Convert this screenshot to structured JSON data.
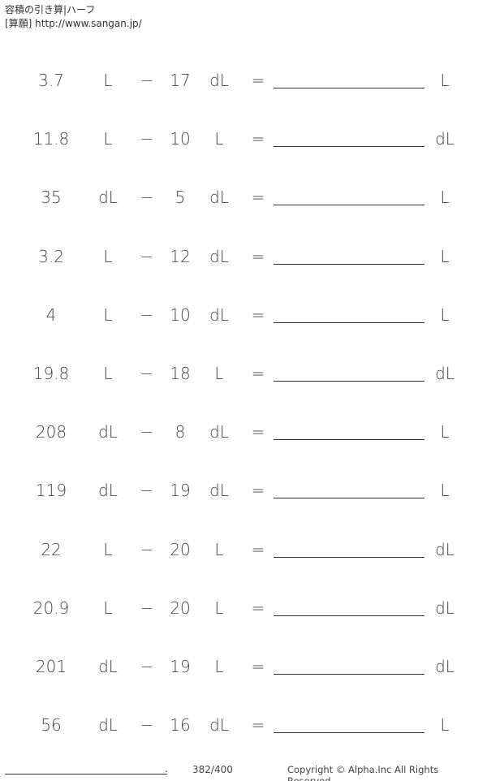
{
  "header": {
    "title": "容積の引き算|ハーフ",
    "site": "[算願] http://www.sangan.jp/"
  },
  "problems": [
    {
      "a": "3.7",
      "ua": "L",
      "op": "−",
      "b": "17",
      "ub": "dL",
      "eq": "=",
      "ans_unit": "L"
    },
    {
      "a": "11.8",
      "ua": "L",
      "op": "−",
      "b": "10",
      "ub": "L",
      "eq": "=",
      "ans_unit": "dL"
    },
    {
      "a": "35",
      "ua": "dL",
      "op": "−",
      "b": "5",
      "ub": "dL",
      "eq": "=",
      "ans_unit": "L"
    },
    {
      "a": "3.2",
      "ua": "L",
      "op": "−",
      "b": "12",
      "ub": "dL",
      "eq": "=",
      "ans_unit": "L"
    },
    {
      "a": "4",
      "ua": "L",
      "op": "−",
      "b": "10",
      "ub": "dL",
      "eq": "=",
      "ans_unit": "L"
    },
    {
      "a": "19.8",
      "ua": "L",
      "op": "−",
      "b": "18",
      "ub": "L",
      "eq": "=",
      "ans_unit": "dL"
    },
    {
      "a": "208",
      "ua": "dL",
      "op": "−",
      "b": "8",
      "ub": "dL",
      "eq": "=",
      "ans_unit": "L"
    },
    {
      "a": "119",
      "ua": "dL",
      "op": "−",
      "b": "19",
      "ub": "dL",
      "eq": "=",
      "ans_unit": "L"
    },
    {
      "a": "22",
      "ua": "L",
      "op": "−",
      "b": "20",
      "ub": "L",
      "eq": "=",
      "ans_unit": "dL"
    },
    {
      "a": "20.9",
      "ua": "L",
      "op": "−",
      "b": "20",
      "ub": "L",
      "eq": "=",
      "ans_unit": "dL"
    },
    {
      "a": "201",
      "ua": "dL",
      "op": "−",
      "b": "19",
      "ub": "L",
      "eq": "=",
      "ans_unit": "dL"
    },
    {
      "a": "56",
      "ua": "dL",
      "op": "−",
      "b": "16",
      "ub": "dL",
      "eq": "=",
      "ans_unit": "L"
    }
  ],
  "footer": {
    "dot": ".",
    "page": "382/400",
    "copyright": "Copyright © Alpha.Inc All Rights Reserved."
  }
}
